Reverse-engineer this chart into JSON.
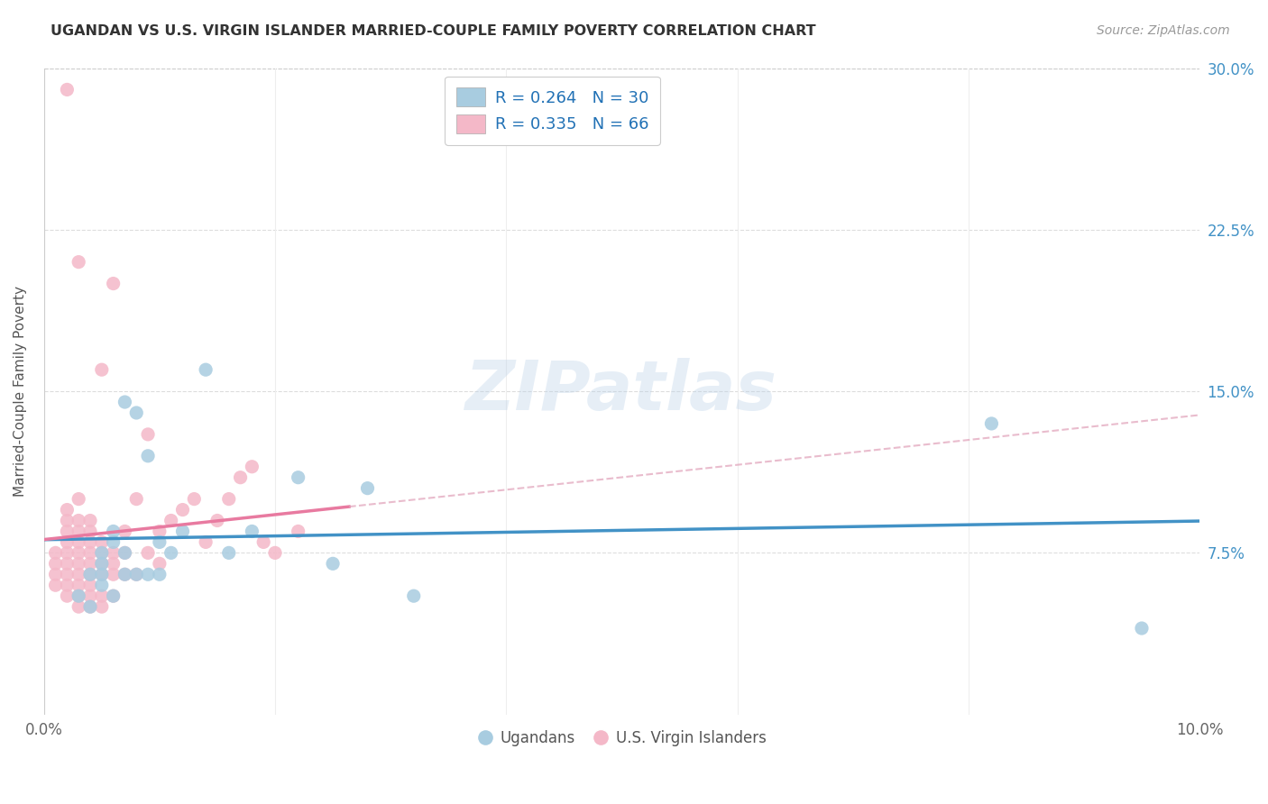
{
  "title": "UGANDAN VS U.S. VIRGIN ISLANDER MARRIED-COUPLE FAMILY POVERTY CORRELATION CHART",
  "source": "Source: ZipAtlas.com",
  "ylabel": "Married-Couple Family Poverty",
  "xmin": 0.0,
  "xmax": 0.1,
  "ymin": 0.0,
  "ymax": 0.3,
  "blue_color": "#a8cce0",
  "pink_color": "#f4b8c8",
  "blue_line_color": "#4292c6",
  "pink_line_color": "#e87aa0",
  "pink_dash_color": "#e0a0b8",
  "r_blue": 0.264,
  "n_blue": 30,
  "r_pink": 0.335,
  "n_pink": 66,
  "legend_color": "#2171b5",
  "background_color": "#ffffff",
  "watermark_text": "ZIPatlas",
  "ugandan_x": [
    0.003,
    0.004,
    0.004,
    0.005,
    0.005,
    0.005,
    0.005,
    0.006,
    0.006,
    0.006,
    0.007,
    0.007,
    0.007,
    0.008,
    0.008,
    0.009,
    0.009,
    0.01,
    0.01,
    0.011,
    0.012,
    0.014,
    0.016,
    0.018,
    0.022,
    0.025,
    0.028,
    0.032,
    0.082,
    0.095
  ],
  "ugandan_y": [
    0.055,
    0.05,
    0.065,
    0.06,
    0.065,
    0.07,
    0.075,
    0.055,
    0.08,
    0.085,
    0.065,
    0.075,
    0.145,
    0.065,
    0.14,
    0.065,
    0.12,
    0.065,
    0.08,
    0.075,
    0.085,
    0.16,
    0.075,
    0.085,
    0.11,
    0.07,
    0.105,
    0.055,
    0.135,
    0.04
  ],
  "virgin_x": [
    0.001,
    0.001,
    0.001,
    0.001,
    0.002,
    0.002,
    0.002,
    0.002,
    0.002,
    0.002,
    0.002,
    0.002,
    0.002,
    0.002,
    0.003,
    0.003,
    0.003,
    0.003,
    0.003,
    0.003,
    0.003,
    0.003,
    0.003,
    0.003,
    0.003,
    0.004,
    0.004,
    0.004,
    0.004,
    0.004,
    0.004,
    0.004,
    0.004,
    0.004,
    0.005,
    0.005,
    0.005,
    0.005,
    0.005,
    0.005,
    0.005,
    0.006,
    0.006,
    0.006,
    0.006,
    0.006,
    0.007,
    0.007,
    0.007,
    0.008,
    0.008,
    0.009,
    0.009,
    0.01,
    0.01,
    0.011,
    0.012,
    0.013,
    0.014,
    0.015,
    0.016,
    0.017,
    0.018,
    0.019,
    0.02,
    0.022
  ],
  "virgin_y": [
    0.06,
    0.065,
    0.07,
    0.075,
    0.055,
    0.06,
    0.065,
    0.07,
    0.075,
    0.08,
    0.085,
    0.09,
    0.095,
    0.29,
    0.05,
    0.055,
    0.06,
    0.065,
    0.07,
    0.075,
    0.08,
    0.085,
    0.09,
    0.1,
    0.21,
    0.05,
    0.055,
    0.06,
    0.065,
    0.07,
    0.075,
    0.08,
    0.085,
    0.09,
    0.05,
    0.055,
    0.065,
    0.07,
    0.075,
    0.08,
    0.16,
    0.055,
    0.065,
    0.07,
    0.075,
    0.2,
    0.065,
    0.075,
    0.085,
    0.065,
    0.1,
    0.075,
    0.13,
    0.07,
    0.085,
    0.09,
    0.095,
    0.1,
    0.08,
    0.09,
    0.1,
    0.11,
    0.115,
    0.08,
    0.075,
    0.085
  ]
}
